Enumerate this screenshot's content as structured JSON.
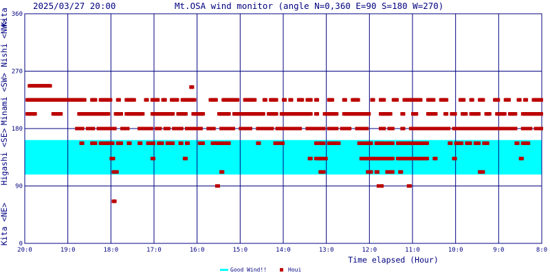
{
  "header": {
    "timestamp": "2025/03/27 20:00",
    "title": "Mt.OSA wind monitor (angle N=0,360 E=90 S=180 W=270)"
  },
  "chart_data": {
    "type": "scatter",
    "x_axis": {
      "label": "Time elapsed (Hour)",
      "range_hours": [
        0,
        12
      ],
      "tick_labels": [
        "20:0",
        "19:0",
        "18:0",
        "17:0",
        "16:0",
        "15:0",
        "14:0",
        "13:0",
        "12:0",
        "11:0",
        "10:0",
        "9:0",
        "8:0"
      ]
    },
    "y_axis": {
      "range_deg": [
        0,
        360
      ],
      "ticks": [
        0,
        90,
        180,
        270,
        360
      ],
      "direction_labels": [
        "Kita <NE>",
        "Higashi <SE>",
        "Minami <SW>",
        "Nishi <NW>",
        "Kita"
      ]
    },
    "good_wind_band": {
      "from_deg": 108,
      "to_deg": 162,
      "color": "#00ffff"
    },
    "series_color": "#bb0000",
    "grid": true,
    "legend": {
      "position": "bottom-center",
      "items": [
        {
          "label": "Good Wind!!",
          "color": "#00ffff",
          "marker": "line"
        },
        {
          "label": "Houi",
          "color": "#bb0000",
          "marker": "square"
        }
      ]
    },
    "rows": [
      {
        "y": 247,
        "ranges": [
          [
            0.1,
            0.6
          ]
        ]
      },
      {
        "y": 245,
        "ranges": [
          [
            3.85,
            3.9
          ]
        ]
      },
      {
        "y": 225,
        "ranges": [
          [
            0.05,
            1.4
          ],
          [
            1.55,
            1.65
          ],
          [
            1.75,
            2.0
          ],
          [
            2.15,
            2.2
          ],
          [
            2.35,
            2.55
          ],
          [
            2.8,
            2.85
          ],
          [
            2.95,
            3.1
          ],
          [
            3.2,
            3.28
          ],
          [
            3.4,
            3.55
          ],
          [
            3.65,
            3.95
          ],
          [
            4.3,
            4.45
          ],
          [
            4.6,
            4.95
          ],
          [
            5.1,
            5.35
          ],
          [
            5.55,
            5.6
          ],
          [
            5.7,
            5.85
          ],
          [
            6.0,
            6.05
          ],
          [
            6.15,
            6.2
          ],
          [
            6.35,
            6.45
          ],
          [
            6.55,
            6.65
          ],
          [
            6.75,
            6.8
          ],
          [
            7.05,
            7.15
          ],
          [
            7.4,
            7.45
          ],
          [
            7.6,
            7.75
          ],
          [
            8.05,
            8.1
          ],
          [
            8.25,
            8.35
          ],
          [
            8.55,
            8.65
          ],
          [
            8.8,
            9.2
          ],
          [
            9.35,
            9.5
          ],
          [
            9.65,
            9.8
          ],
          [
            10.1,
            10.2
          ],
          [
            10.35,
            10.4
          ],
          [
            10.55,
            10.65
          ],
          [
            10.9,
            11.0
          ],
          [
            11.15,
            11.25
          ],
          [
            11.45,
            11.5
          ],
          [
            11.6,
            11.65
          ],
          [
            11.8,
            12.0
          ]
        ]
      },
      {
        "y": 203,
        "ranges": [
          [
            0.05,
            0.25
          ],
          [
            0.65,
            0.85
          ],
          [
            1.25,
            1.95
          ],
          [
            2.1,
            2.25
          ],
          [
            2.35,
            2.75
          ],
          [
            2.95,
            3.45
          ],
          [
            3.55,
            3.75
          ],
          [
            3.9,
            4.15
          ],
          [
            4.5,
            4.75
          ],
          [
            4.85,
            5.55
          ],
          [
            5.65,
            5.85
          ],
          [
            5.95,
            6.65
          ],
          [
            6.75,
            6.8
          ],
          [
            6.95,
            7.25
          ],
          [
            7.4,
            8.0
          ],
          [
            8.25,
            8.5
          ],
          [
            8.75,
            8.8
          ],
          [
            9.0,
            9.1
          ],
          [
            9.35,
            9.55
          ],
          [
            9.75,
            9.8
          ],
          [
            9.9,
            10.0
          ],
          [
            10.15,
            10.25
          ],
          [
            10.35,
            10.55
          ],
          [
            10.7,
            10.8
          ],
          [
            10.95,
            11.15
          ],
          [
            11.25,
            11.4
          ],
          [
            11.55,
            12.0
          ]
        ]
      },
      {
        "y": 180,
        "ranges": [
          [
            1.2,
            1.35
          ],
          [
            1.45,
            1.6
          ],
          [
            1.7,
            2.1
          ],
          [
            2.25,
            2.4
          ],
          [
            2.65,
            2.95
          ],
          [
            3.05,
            3.15
          ],
          [
            3.25,
            3.35
          ],
          [
            3.45,
            3.65
          ],
          [
            3.75,
            4.1
          ],
          [
            4.25,
            4.4
          ],
          [
            4.55,
            4.85
          ],
          [
            5.0,
            5.25
          ],
          [
            5.4,
            5.75
          ],
          [
            5.85,
            6.4
          ],
          [
            6.55,
            6.95
          ],
          [
            7.05,
            7.25
          ],
          [
            7.35,
            7.55
          ],
          [
            7.7,
            7.95
          ],
          [
            8.25,
            8.35
          ],
          [
            8.45,
            8.55
          ],
          [
            8.75,
            8.8
          ],
          [
            8.95,
            9.85
          ],
          [
            9.95,
            11.4
          ],
          [
            11.55,
            11.75
          ],
          [
            11.85,
            12.0
          ]
        ]
      },
      {
        "y": 157,
        "ranges": [
          [
            1.3,
            1.35
          ],
          [
            1.55,
            1.65
          ],
          [
            1.75,
            2.05
          ],
          [
            2.15,
            2.25
          ],
          [
            2.4,
            2.45
          ],
          [
            2.65,
            2.7
          ],
          [
            2.85,
            3.0
          ],
          [
            3.1,
            3.2
          ],
          [
            3.3,
            3.45
          ],
          [
            3.6,
            3.65
          ],
          [
            3.75,
            3.8
          ],
          [
            4.05,
            4.15
          ],
          [
            4.35,
            4.75
          ],
          [
            5.4,
            5.45
          ],
          [
            5.8,
            6.0
          ],
          [
            6.75,
            6.95
          ],
          [
            7.05,
            7.3
          ],
          [
            7.75,
            8.05
          ],
          [
            8.15,
            8.35
          ],
          [
            8.4,
            8.55
          ],
          [
            8.65,
            9.35
          ],
          [
            9.85,
            9.9
          ],
          [
            10.0,
            10.15
          ],
          [
            10.25,
            10.35
          ],
          [
            10.45,
            10.55
          ],
          [
            10.65,
            10.75
          ],
          [
            11.4,
            11.45
          ],
          [
            11.55,
            11.7
          ]
        ]
      },
      {
        "y": 133,
        "ranges": [
          [
            2.0,
            2.08
          ],
          [
            2.95,
            3.0
          ],
          [
            3.7,
            3.75
          ],
          [
            6.6,
            6.65
          ],
          [
            6.75,
            7.0
          ],
          [
            7.8,
            8.55
          ],
          [
            8.65,
            9.35
          ],
          [
            9.5,
            9.55
          ],
          [
            9.95,
            10.0
          ],
          [
            11.5,
            11.55
          ]
        ]
      },
      {
        "y": 112,
        "ranges": [
          [
            2.05,
            2.15
          ],
          [
            4.55,
            4.6
          ],
          [
            6.85,
            6.95
          ],
          [
            7.95,
            8.05
          ],
          [
            8.15,
            8.2
          ],
          [
            8.4,
            8.55
          ],
          [
            8.7,
            8.75
          ],
          [
            10.55,
            10.65
          ]
        ]
      },
      {
        "y": 90,
        "ranges": [
          [
            4.45,
            4.5
          ],
          [
            8.2,
            8.3
          ],
          [
            8.9,
            8.95
          ]
        ]
      },
      {
        "y": 66,
        "ranges": [
          [
            2.05,
            2.1
          ]
        ]
      }
    ]
  }
}
